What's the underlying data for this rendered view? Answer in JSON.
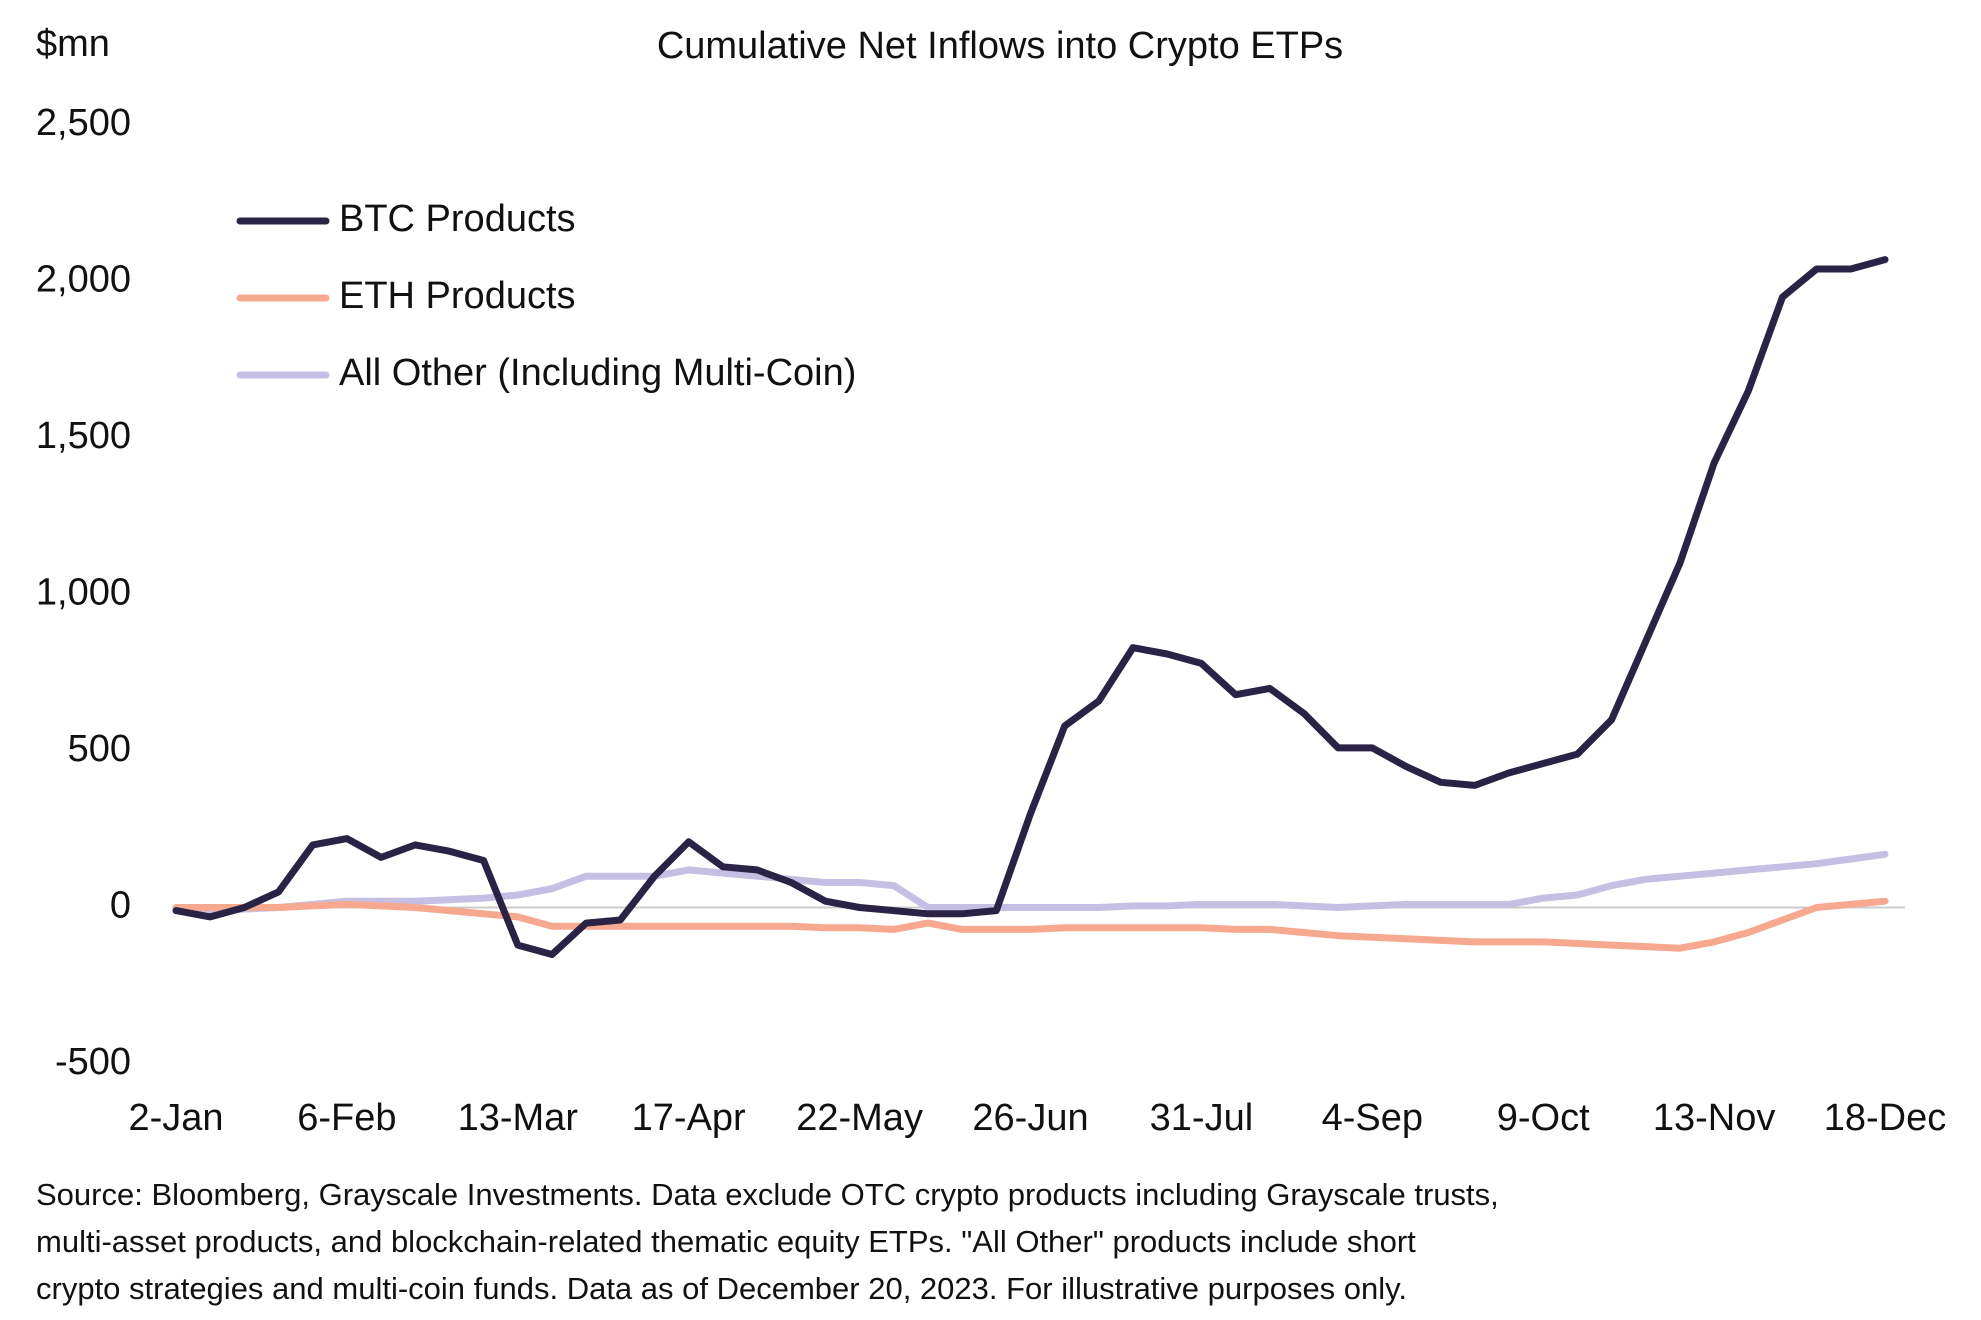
{
  "chart_data": {
    "type": "line",
    "title": "Cumulative Net Inflows into Crypto ETPs",
    "y_label": "$mn",
    "categories": [
      "2-Jan",
      null,
      null,
      null,
      null,
      "6-Feb",
      null,
      null,
      null,
      null,
      "13-Mar",
      null,
      null,
      null,
      null,
      "17-Apr",
      null,
      null,
      null,
      null,
      "22-May",
      null,
      null,
      null,
      null,
      "26-Jun",
      null,
      null,
      null,
      null,
      "31-Jul",
      null,
      null,
      null,
      null,
      "4-Sep",
      null,
      null,
      null,
      null,
      "9-Oct",
      null,
      null,
      null,
      null,
      "13-Nov",
      null,
      null,
      null,
      null,
      "18-Dec"
    ],
    "series": [
      {
        "name": "BTC Products",
        "color": "#2a2346",
        "values": [
          -10,
          -30,
          0,
          50,
          200,
          220,
          160,
          200,
          180,
          150,
          -120,
          -150,
          -50,
          -40,
          100,
          210,
          130,
          120,
          80,
          20,
          0,
          -10,
          -20,
          -20,
          -10,
          300,
          580,
          660,
          830,
          810,
          780,
          680,
          700,
          620,
          510,
          510,
          450,
          400,
          390,
          430,
          460,
          490,
          600,
          850,
          1100,
          1420,
          1650,
          1950,
          2040,
          2040,
          2070
        ]
      },
      {
        "name": "ETH Products",
        "color": "#f7a98f",
        "values": [
          0,
          0,
          0,
          0,
          5,
          10,
          5,
          0,
          -10,
          -20,
          -30,
          -60,
          -60,
          -60,
          -60,
          -60,
          -60,
          -60,
          -60,
          -65,
          -65,
          -70,
          -50,
          -70,
          -70,
          -70,
          -65,
          -65,
          -65,
          -65,
          -65,
          -70,
          -70,
          -80,
          -90,
          -95,
          -100,
          -105,
          -110,
          -110,
          -110,
          -115,
          -120,
          -125,
          -130,
          -110,
          -80,
          -40,
          0,
          10,
          20
        ]
      },
      {
        "name": "All Other (Including Multi-Coin)",
        "color": "#c5bfe3",
        "values": [
          -10,
          -10,
          -5,
          0,
          10,
          20,
          20,
          20,
          25,
          30,
          40,
          60,
          100,
          100,
          100,
          120,
          110,
          100,
          90,
          80,
          80,
          70,
          0,
          0,
          0,
          0,
          0,
          0,
          5,
          5,
          10,
          10,
          10,
          5,
          0,
          5,
          10,
          10,
          10,
          10,
          30,
          40,
          70,
          90,
          100,
          110,
          120,
          130,
          140,
          155,
          170
        ]
      }
    ],
    "ylim": [
      -500,
      2500
    ],
    "yticks": [
      -500,
      0,
      500,
      {
        "value": 1000,
        "label": "1,000"
      },
      {
        "value": 1500,
        "label": "1,500"
      },
      {
        "value": 2000,
        "label": "2,000"
      },
      {
        "value": 2500,
        "label": "2,500"
      }
    ],
    "zero_line": true,
    "legend": "top-left",
    "note": [
      "Source: Bloomberg, Grayscale Investments. Data exclude OTC crypto products including Grayscale trusts,",
      "multi-asset products, and blockchain-related thematic equity ETPs.  \"All Other\" products include short",
      "crypto strategies and multi-coin funds. Data as of December 20, 2023. For illustrative purposes only."
    ]
  }
}
